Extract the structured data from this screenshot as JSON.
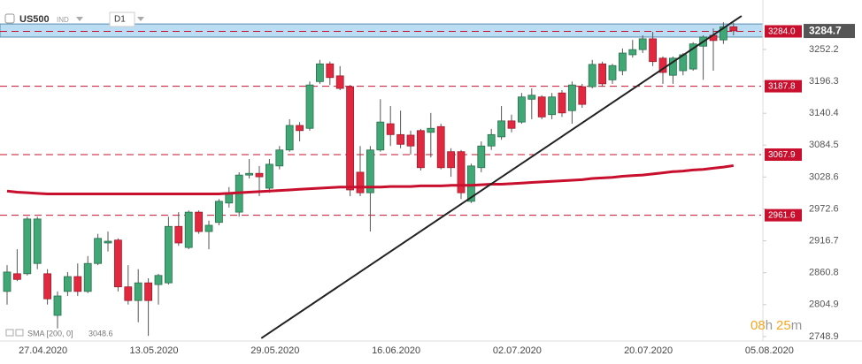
{
  "chart_data": {
    "type": "candlestick",
    "title": "US500",
    "instrument_type": "IND",
    "timeframe": "D1",
    "categories": [
      null,
      null,
      null,
      null,
      "27.04.2020",
      null,
      null,
      null,
      null,
      null,
      null,
      null,
      null,
      null,
      null,
      "13.05.2020",
      null,
      null,
      null,
      null,
      null,
      null,
      null,
      null,
      null,
      null,
      null,
      "29.05.2020",
      null,
      null,
      null,
      null,
      null,
      null,
      null,
      null,
      null,
      null,
      null,
      "16.06.2020",
      null,
      null,
      null,
      null,
      null,
      null,
      null,
      null,
      null,
      null,
      null,
      "02.07.2020",
      null,
      null,
      null,
      null,
      null,
      null,
      null,
      null,
      null,
      null,
      null,
      null,
      "20.07.2020",
      null,
      null,
      null,
      null,
      null,
      null,
      null,
      null,
      null,
      null,
      null,
      "05.08.2020"
    ],
    "open": [
      2828,
      2859,
      2859,
      2877,
      2859,
      2786,
      2828,
      2854,
      2828,
      2877,
      2913,
      2918,
      2836,
      2812,
      2843,
      2840,
      2843,
      2942,
      2905,
      2967,
      2933,
      2949,
      2983,
      2967,
      3032,
      3035,
      3009,
      3048,
      3076,
      3119,
      3114,
      3196,
      3227,
      3206,
      3187,
      3037,
      3001,
      3076,
      3122,
      3103,
      3102,
      3110,
      3107,
      3117,
      3073,
      3073,
      2986,
      3045,
      3083,
      3099,
      3127,
      3125,
      3165,
      3169,
      3138,
      3176,
      3145,
      3187,
      3187,
      3227,
      3199,
      3215,
      3243,
      3252,
      3271,
      3237,
      3207,
      3215,
      3218,
      3258,
      3277,
      3269,
      3292,
      null,
      null,
      null,
      null
    ],
    "high": [
      2874,
      2902,
      2959,
      2959,
      2867,
      2828,
      2862,
      2877,
      2890,
      2929,
      2933,
      2921,
      2874,
      2867,
      2851,
      2859,
      2959,
      2967,
      2970,
      2970,
      2952,
      2990,
      3011,
      3037,
      3060,
      3048,
      3060,
      3083,
      3130,
      3125,
      3196,
      3234,
      3231,
      3223,
      3190,
      3083,
      3083,
      3165,
      3153,
      3145,
      3110,
      3113,
      3141,
      3122,
      3079,
      3076,
      3052,
      3091,
      3113,
      3153,
      3138,
      3176,
      3184,
      3172,
      3176,
      3181,
      3196,
      3192,
      3234,
      3231,
      3227,
      3254,
      3269,
      3277,
      3283,
      3240,
      3240,
      3246,
      3265,
      3277,
      3289,
      3300,
      3299,
      null,
      null,
      null,
      null
    ],
    "low": [
      2805,
      2846,
      2856,
      2867,
      2805,
      2763,
      2820,
      2820,
      2825,
      2874,
      2898,
      2828,
      2805,
      2774,
      2750,
      2805,
      2840,
      2908,
      2902,
      2929,
      2902,
      2944,
      2975,
      2959,
      3026,
      2995,
      3001,
      3042,
      3073,
      3091,
      3110,
      3192,
      3190,
      3181,
      2995,
      2995,
      2933,
      3073,
      3083,
      3079,
      3068,
      3040,
      3063,
      3042,
      3029,
      2990,
      2983,
      3037,
      3076,
      3094,
      3107,
      3122,
      3130,
      3130,
      3130,
      3134,
      3122,
      3150,
      3184,
      3187,
      3192,
      3207,
      3238,
      3246,
      3223,
      3192,
      3192,
      3207,
      3215,
      3199,
      3215,
      3262,
      3277,
      null,
      null,
      null,
      null
    ],
    "close": [
      2862,
      2849,
      2955,
      2955,
      2815,
      2820,
      2854,
      2828,
      2877,
      2921,
      2916,
      2836,
      2812,
      2843,
      2812,
      2856,
      2942,
      2913,
      2967,
      2933,
      2944,
      2986,
      3001,
      3032,
      3035,
      3029,
      3051,
      3076,
      3119,
      3110,
      3190,
      3227,
      3203,
      3184,
      3006,
      3001,
      3076,
      3125,
      3103,
      3086,
      3083,
      3045,
      3114,
      3045,
      3045,
      3001,
      3048,
      3083,
      3103,
      3127,
      3114,
      3169,
      3172,
      3134,
      3169,
      3141,
      3190,
      3156,
      3226,
      3192,
      3224,
      3246,
      3252,
      3271,
      3231,
      3212,
      3237,
      3243,
      3262,
      3274,
      3268,
      3292,
      3285,
      null,
      null,
      null,
      null
    ],
    "up_color": "#3fa874",
    "down_color": "#e2283f",
    "sma": {
      "name": "SMA [200, 0]",
      "color": "#c8102e",
      "values": [
        3004,
        3002,
        3001,
        3000,
        2999,
        2999,
        2999,
        2999,
        2999,
        2999,
        2999,
        2999,
        2999,
        2999,
        2999,
        2999,
        2999,
        2999,
        2999,
        2999,
        2999,
        2999,
        3000,
        3001,
        3002,
        3003,
        3004,
        3005,
        3006,
        3007,
        3008,
        3009,
        3010,
        3011,
        3011,
        3011,
        3011,
        3011,
        3012,
        3012,
        3012,
        3013,
        3013,
        3013,
        3014,
        3014,
        3014,
        3015,
        3016,
        3016,
        3017,
        3018,
        3019,
        3020,
        3021,
        3022,
        3023,
        3024,
        3026,
        3027,
        3028,
        3030,
        3031,
        3032,
        3034,
        3036,
        3038,
        3039,
        3041,
        3042,
        3044,
        3046,
        3048.6,
        null,
        null,
        null,
        null
      ]
    },
    "trendline": {
      "x": [
        25.2,
        72.8
      ],
      "y": [
        2746,
        3311
      ],
      "color": "#222222"
    },
    "levels": [
      {
        "value": 3284,
        "label": "3284.0"
      },
      3187.8,
      3067.9,
      2961.6
    ],
    "level_color": "#c8102e",
    "zone": [
      3274,
      3297
    ],
    "zone_color": "#a9d5f0",
    "current_price": 3284.7,
    "ylim": [
      2741,
      3339
    ],
    "yticks": [
      2748.9,
      2804.9,
      2860.8,
      2916.7,
      2972.6,
      3028.6,
      3084.5,
      3140.4,
      3196.3,
      3252.2
    ],
    "countdown": [
      "08",
      "h",
      "25",
      "m"
    ]
  }
}
